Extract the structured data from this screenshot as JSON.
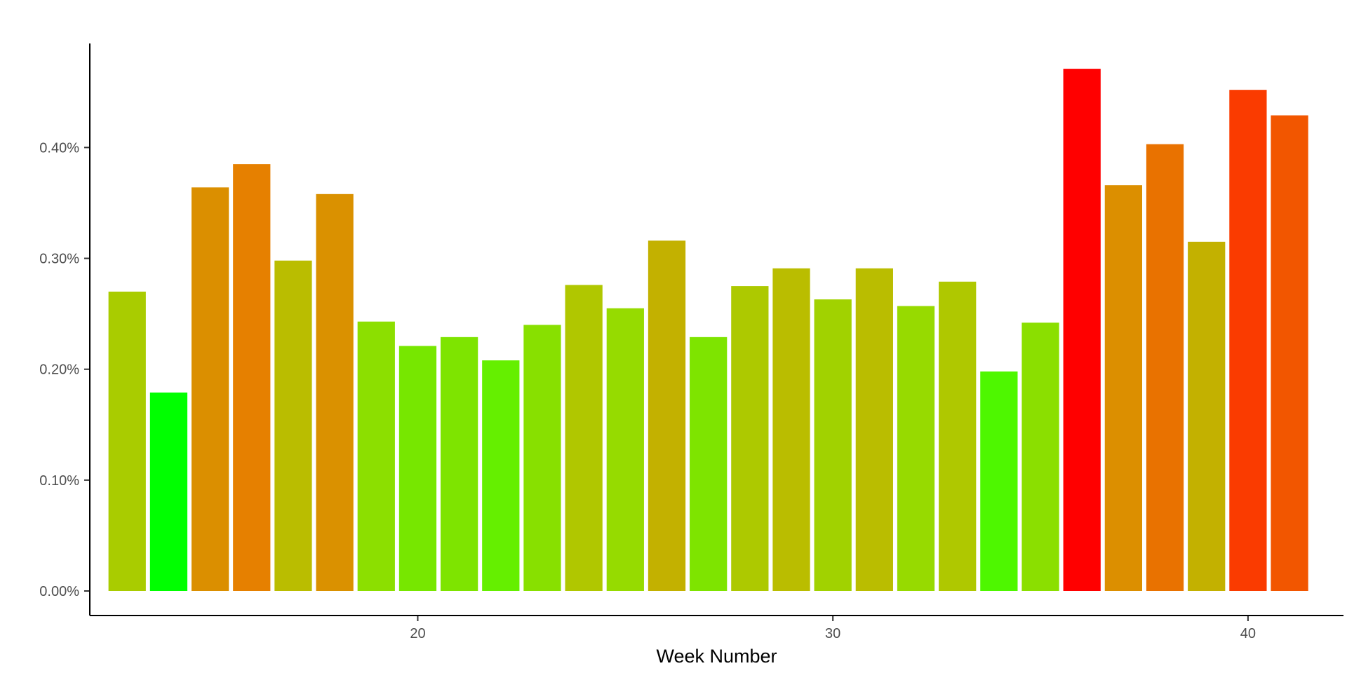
{
  "chart_data": {
    "type": "bar",
    "title": "",
    "xlabel": "Week Number",
    "ylabel": "",
    "x": [
      13,
      14,
      15,
      16,
      17,
      18,
      19,
      20,
      21,
      22,
      23,
      24,
      25,
      26,
      27,
      28,
      29,
      30,
      31,
      32,
      33,
      34,
      35,
      36,
      37,
      38,
      39,
      40,
      41
    ],
    "values": [
      0.27,
      0.179,
      0.364,
      0.385,
      0.298,
      0.358,
      0.243,
      0.221,
      0.229,
      0.208,
      0.24,
      0.276,
      0.255,
      0.316,
      0.229,
      0.275,
      0.291,
      0.263,
      0.291,
      0.257,
      0.279,
      0.198,
      0.242,
      0.471,
      0.366,
      0.403,
      0.315,
      0.452,
      0.429
    ],
    "colors": [
      "#A9CC00",
      "#00FF00",
      "#DB8F00",
      "#E68000",
      "#BABD00",
      "#DA9100",
      "#8CDF00",
      "#77E700",
      "#7EE400",
      "#65EF00",
      "#88E000",
      "#B0C700",
      "#96DB00",
      "#C3B100",
      "#7EE400",
      "#ADC900",
      "#BABD00",
      "#A1D200",
      "#BABD00",
      "#97DA00",
      "#AFC800",
      "#4EF700",
      "#8BDF00",
      "#FF0000",
      "#DC8F00",
      "#E97200",
      "#C3B100",
      "#FA3B00",
      "#F25600"
    ],
    "ylim": [
      0,
      0.485
    ],
    "xlim": [
      12.1,
      42.3
    ],
    "y_ticks": [
      0.0,
      0.1,
      0.2,
      0.3,
      0.4
    ],
    "y_tick_labels": [
      "0.00%",
      "0.10%",
      "0.20%",
      "0.30%",
      "0.40%"
    ],
    "x_ticks": [
      20,
      30,
      40
    ],
    "x_tick_labels": [
      "20",
      "30",
      "40"
    ],
    "grid": false,
    "legend": "none"
  }
}
